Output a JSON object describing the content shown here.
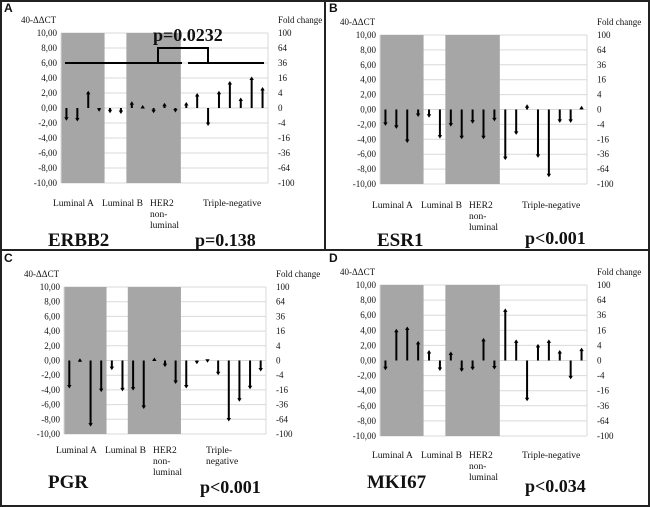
{
  "chart_data": [
    {
      "panel": "A",
      "type": "bar",
      "gene": "ERBB2",
      "p_value": "p=0.138",
      "annotation": "p=0.0232",
      "left_axis_title": "40-ΔΔCT",
      "right_axis_title": "Fold change",
      "values": [
        -1.5,
        -1.6,
        2.1,
        -0.3,
        -0.5,
        -0.6,
        0.7,
        0.2,
        -0.5,
        0.5,
        -0.4,
        0.6,
        1.8,
        -2.2,
        2.1,
        3.4,
        1.2,
        4.0,
        2.6
      ]
    },
    {
      "panel": "B",
      "type": "bar",
      "gene": "ESR1",
      "p_value": "p<0.001",
      "left_axis_title": "40-ΔΔCT",
      "right_axis_title": "Fold change",
      "values": [
        -2.0,
        -2.4,
        -4.3,
        -0.8,
        -0.9,
        -3.7,
        -2.1,
        -3.8,
        -1.7,
        -3.8,
        -1.4,
        -6.6,
        -3.2,
        0.5,
        -6.3,
        -8.9,
        -1.6,
        -1.6,
        0.3
      ]
    },
    {
      "panel": "C",
      "type": "bar",
      "gene": "PGR",
      "p_value": "p<0.001",
      "left_axis_title": "40-ΔΔCT",
      "right_axis_title": "Fold change",
      "values": [
        -3.6,
        0.1,
        -8.8,
        -4.1,
        -1.1,
        -4.0,
        -3.9,
        -6.4,
        0.2,
        -0.7,
        -3.0,
        -3.6,
        -0.3,
        -0.1,
        -1.8,
        -8.1,
        -5.4,
        -3.7,
        -1.3
      ]
    },
    {
      "panel": "D",
      "type": "bar",
      "gene": "MKI67",
      "p_value": "p<0.034",
      "left_axis_title": "40-ΔΔCT",
      "right_axis_title": "Fold change",
      "values": [
        -1.1,
        4.0,
        4.3,
        2.4,
        1.2,
        -1.2,
        1.0,
        -1.3,
        -1.1,
        2.8,
        -1.0,
        6.7,
        2.6,
        -5.2,
        2.0,
        2.6,
        1.2,
        -2.3,
        1.5
      ]
    }
  ],
  "groups": [
    {
      "name": "Luminal A",
      "lines": [
        "Luminal A"
      ],
      "count": 4,
      "shaded": true
    },
    {
      "name": "Luminal B",
      "lines": [
        "Luminal B"
      ],
      "count": 2,
      "shaded": false
    },
    {
      "name": "HER2 non-luminal",
      "lines": [
        "HER2",
        "non-",
        "luminal"
      ],
      "count": 5,
      "shaded": true
    },
    {
      "name": "Triple-negative",
      "lines": [
        "Triple-negative"
      ],
      "count": 8,
      "shaded": false
    }
  ],
  "triple_negative_split": [
    "Triple-",
    "negative"
  ],
  "left_ticks": [
    "10,00",
    "8,00",
    "6,00",
    "4,00",
    "2,00",
    "0,00",
    "-2,00",
    "-4,00",
    "-6,00",
    "-8,00",
    "-10,00"
  ],
  "right_ticks": [
    "100",
    "64",
    "36",
    "16",
    "4",
    "0",
    "-4",
    "-16",
    "-36",
    "-64",
    "-100"
  ],
  "ylim": [
    -10,
    10
  ],
  "colors": {
    "shade": "#a6a6a6",
    "grid": "#d9d9d9",
    "mark": "#000000"
  }
}
